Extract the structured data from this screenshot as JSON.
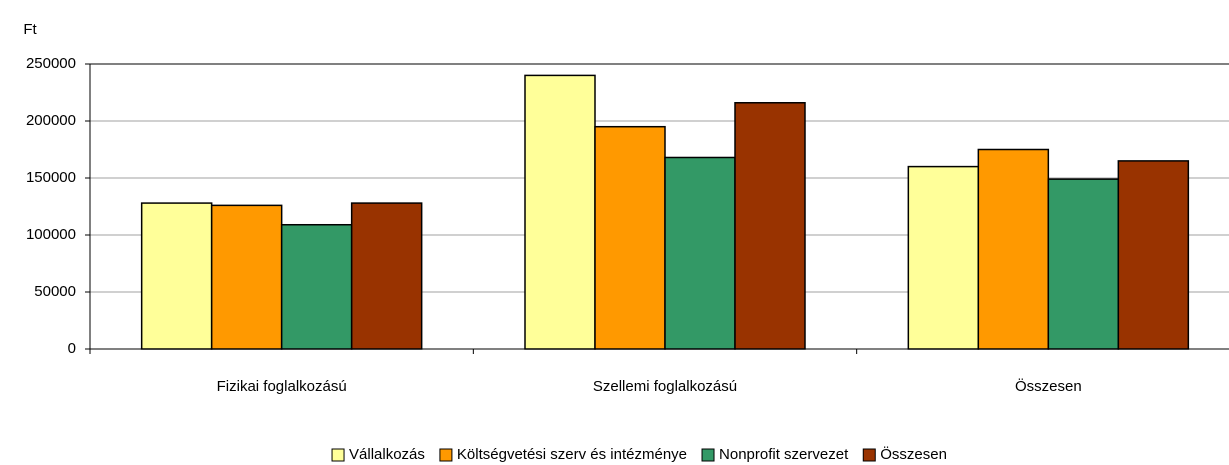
{
  "chart_data": {
    "type": "bar",
    "y_axis_label": "Ft",
    "categories": [
      "Fizikai foglalkozású",
      "Szellemi foglalkozású",
      "Összesen"
    ],
    "series": [
      {
        "name": "Vállalkozás",
        "color": "#ffff99",
        "values": [
          128000,
          240000,
          160000
        ]
      },
      {
        "name": "Költségvetési szerv és intézménye",
        "color": "#ff9900",
        "values": [
          126000,
          195000,
          175000
        ]
      },
      {
        "name": "Nonprofit szervezet",
        "color": "#339966",
        "values": [
          109000,
          168000,
          149000
        ]
      },
      {
        "name": "Összesen",
        "color": "#993300",
        "values": [
          128000,
          216000,
          165000
        ]
      }
    ],
    "ylim": [
      0,
      250000
    ],
    "yticks": [
      0,
      50000,
      100000,
      150000,
      200000,
      250000
    ],
    "grid": true,
    "legend": "bottom"
  }
}
